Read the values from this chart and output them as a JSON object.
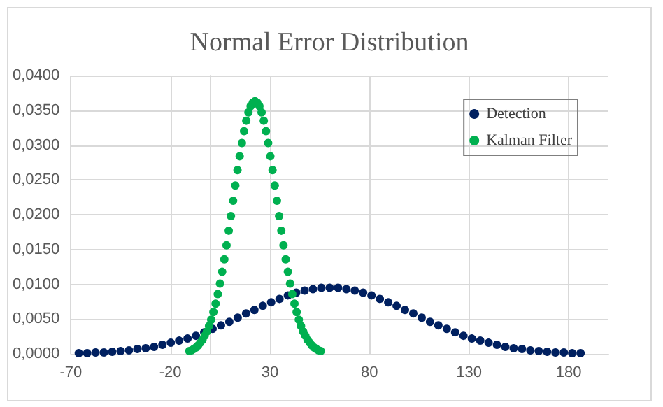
{
  "chart_data": {
    "type": "scatter",
    "title": "Normal Error Distribution",
    "xlim": [
      -70,
      200
    ],
    "xticks": [
      -70,
      -20,
      30,
      80,
      130,
      180
    ],
    "ylim": [
      0,
      0.04
    ],
    "yticks": [
      {
        "value": 0,
        "label": "0,0000"
      },
      {
        "value": 0.005,
        "label": "0,0050"
      },
      {
        "value": 0.01,
        "label": "0,0100"
      },
      {
        "value": 0.015,
        "label": "0,0150"
      },
      {
        "value": 0.02,
        "label": "0,0200"
      },
      {
        "value": 0.025,
        "label": "0,0250"
      },
      {
        "value": 0.03,
        "label": "0,0300"
      },
      {
        "value": 0.035,
        "label": "0,0350"
      },
      {
        "value": 0.04,
        "label": "0,0400"
      }
    ],
    "grid": true,
    "legend": "top right",
    "marker": "circle",
    "series": [
      {
        "name": "Detection",
        "color": "#002060",
        "x": [
          -66,
          -61.8,
          -57.6,
          -53.4,
          -49.2,
          -45,
          -40.8,
          -36.6,
          -32.4,
          -28.2,
          -24,
          -19.8,
          -15.6,
          -11.4,
          -7.2,
          -3,
          1.2,
          5.4,
          9.6,
          13.8,
          18,
          22.2,
          26.4,
          30.6,
          34.8,
          39,
          43.2,
          47.4,
          51.6,
          55.8,
          60,
          64.2,
          68.4,
          72.6,
          76.8,
          81,
          85.2,
          89.4,
          93.6,
          97.8,
          102,
          106.2,
          110.4,
          114.6,
          118.8,
          123,
          127.2,
          131.4,
          135.6,
          139.8,
          144,
          148.2,
          152.4,
          156.6,
          160.8,
          165,
          169.2,
          173.4,
          177.6,
          181.8,
          186
        ],
        "values": [
          0.0001,
          0.0001,
          0.0002,
          0.0002,
          0.0003,
          0.0004,
          0.0005,
          0.0007,
          0.0008,
          0.001,
          0.0013,
          0.0016,
          0.0019,
          0.0022,
          0.0026,
          0.0031,
          0.0036,
          0.0041,
          0.0046,
          0.0052,
          0.0058,
          0.0063,
          0.0069,
          0.0074,
          0.0079,
          0.0084,
          0.0088,
          0.0091,
          0.0093,
          0.0095,
          0.0095,
          0.0095,
          0.0093,
          0.0091,
          0.0088,
          0.0084,
          0.0079,
          0.0074,
          0.0069,
          0.0063,
          0.0058,
          0.0052,
          0.0046,
          0.0041,
          0.0036,
          0.0031,
          0.0026,
          0.0022,
          0.0019,
          0.0016,
          0.0013,
          0.001,
          0.0008,
          0.0007,
          0.0005,
          0.0004,
          0.0003,
          0.0002,
          0.0002,
          0.0001,
          0.0001
        ]
      },
      {
        "name": "Kalman Filter",
        "color": "#00b050",
        "x": [
          -10.5,
          -9.4,
          -8.3,
          -7.2,
          -6.1,
          -5,
          -3.9,
          -2.8,
          -1.7,
          -0.6,
          0.5,
          1.6,
          2.7,
          3.8,
          4.9,
          6,
          7.1,
          8.2,
          9.3,
          10.4,
          11.5,
          12.6,
          13.7,
          14.8,
          15.9,
          17,
          18.1,
          19.2,
          20.3,
          21.4,
          22.5,
          23.6,
          24.7,
          25.8,
          26.9,
          28,
          29.1,
          30.2,
          31.3,
          32.4,
          33.5,
          34.6,
          35.7,
          36.8,
          37.9,
          39,
          40.1,
          41.2,
          42.3,
          43.4,
          44.5,
          45.6,
          46.7,
          47.8,
          48.9,
          50,
          51.1,
          52.2,
          53.3,
          54.4,
          55.5
        ],
        "values": [
          0.0004,
          0.0005,
          0.0007,
          0.0009,
          0.0012,
          0.0016,
          0.002,
          0.0026,
          0.0032,
          0.004,
          0.0049,
          0.006,
          0.0072,
          0.0086,
          0.0101,
          0.0118,
          0.0136,
          0.0156,
          0.0177,
          0.0198,
          0.022,
          0.0242,
          0.0264,
          0.0284,
          0.0303,
          0.032,
          0.0335,
          0.0347,
          0.0356,
          0.0361,
          0.0363,
          0.0361,
          0.0356,
          0.0347,
          0.0335,
          0.032,
          0.0303,
          0.0284,
          0.0264,
          0.0242,
          0.022,
          0.0198,
          0.0177,
          0.0156,
          0.0136,
          0.0118,
          0.0101,
          0.0086,
          0.0072,
          0.006,
          0.0049,
          0.004,
          0.0032,
          0.0026,
          0.002,
          0.0016,
          0.0012,
          0.0009,
          0.0007,
          0.0005,
          0.0004
        ]
      }
    ]
  }
}
